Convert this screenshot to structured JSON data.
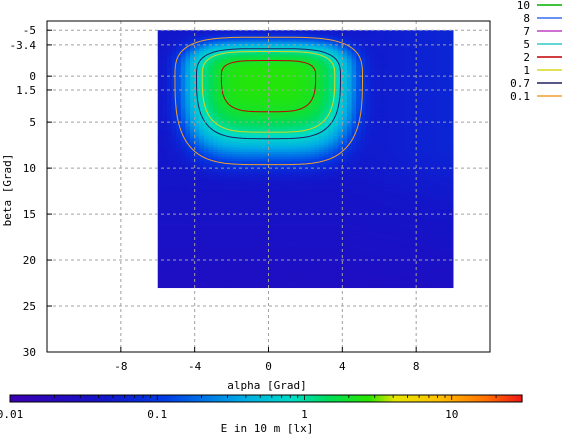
{
  "chart_data": {
    "type": "heatmap",
    "xlabel": "alpha [Grad]",
    "ylabel": "beta [Grad]",
    "xlim": [
      -12,
      12
    ],
    "ylim": [
      -6,
      30
    ],
    "x_ticks": [
      "-8",
      "-4",
      "0",
      "4",
      "8"
    ],
    "x_tick_values": [
      -8,
      -4,
      0,
      4,
      8
    ],
    "y_ticks": [
      "-5",
      "-3.4",
      "0",
      "1.5",
      "5",
      "10",
      "15",
      "20",
      "25",
      "30"
    ],
    "y_tick_values": [
      -5,
      -3.4,
      0,
      1.5,
      5,
      10,
      15,
      20,
      25,
      30
    ],
    "y_inverted": true,
    "grid": true,
    "data_extent": {
      "alpha": [
        -6,
        10
      ],
      "beta": [
        -5,
        23
      ]
    },
    "legend_placement": "top-right",
    "contour_levels": [
      {
        "label": "10",
        "value": 10,
        "color": "#00b000"
      },
      {
        "label": "8",
        "value": 8,
        "color": "#3a6df0"
      },
      {
        "label": "7",
        "value": 7,
        "color": "#c040c0"
      },
      {
        "label": "5",
        "value": 5,
        "color": "#30c8c8"
      },
      {
        "label": "2",
        "value": 2,
        "color": "#c00000"
      },
      {
        "label": "1",
        "value": 1,
        "color": "#d8d820"
      },
      {
        "label": "0.7",
        "value": 0.7,
        "color": "#202060"
      },
      {
        "label": "0.1",
        "value": 0.1,
        "color": "#f0a030"
      }
    ],
    "colorbar": {
      "label": "E in 10 m [lx]",
      "scale": "log",
      "range": [
        0.01,
        30
      ],
      "tick_labels": [
        "0.01",
        "0.1",
        "1",
        "10"
      ],
      "tick_values": [
        0.01,
        0.1,
        1,
        10
      ]
    },
    "peak_value": 2.5,
    "peak_location": {
      "alpha": 0,
      "beta": 0
    }
  }
}
